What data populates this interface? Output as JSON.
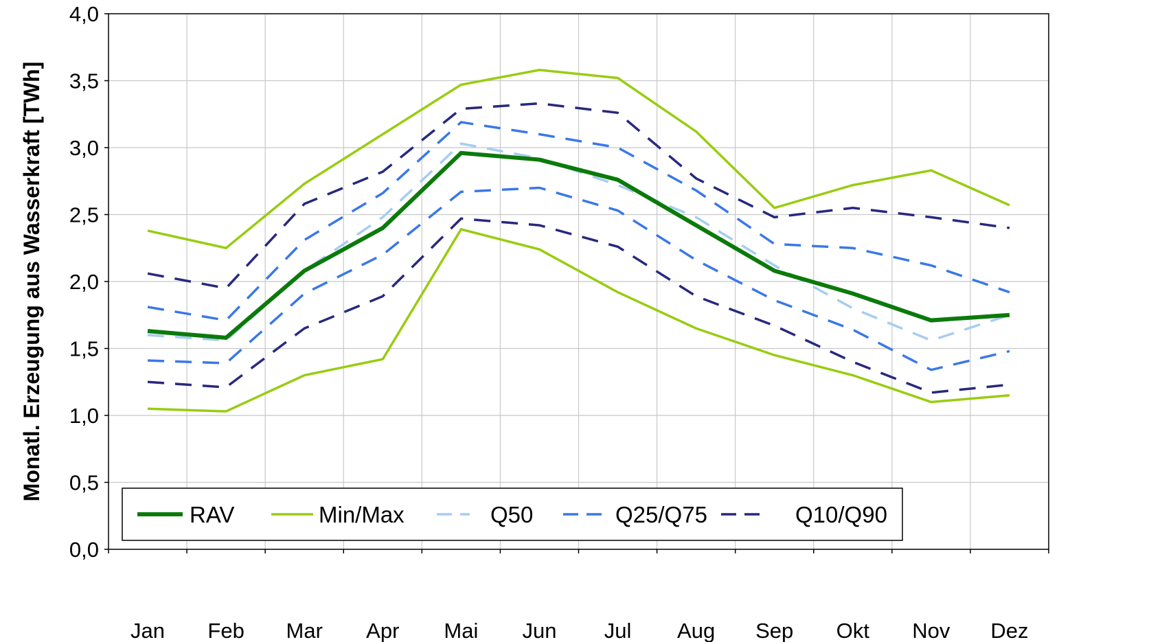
{
  "chart_data": {
    "type": "line",
    "ylabel": "Monatl. Erzeugung aus Wasserkraft [TWh]",
    "xlabel": "",
    "categories": [
      "Jan",
      "Feb",
      "Mar",
      "Apr",
      "Mai",
      "Jun",
      "Jul",
      "Aug",
      "Sep",
      "Okt",
      "Nov",
      "Dez"
    ],
    "ylim": [
      0,
      4
    ],
    "yticks": [
      0,
      0.5,
      1,
      1.5,
      2,
      2.5,
      3,
      3.5,
      4
    ],
    "ytick_labels": [
      "0,0",
      "0,5",
      "1,0",
      "1,5",
      "2,0",
      "2,5",
      "3,0",
      "3,5",
      "4,0"
    ],
    "grid": true,
    "legend_position": "bottom-left",
    "legend": [
      "RAV",
      "Min/Max",
      "Q50",
      "Q25/Q75",
      "Q10/Q90"
    ],
    "colors": {
      "RAV": "#0b7a0b",
      "Min/Max": "#99cc11",
      "Q50": "#a6cdf2",
      "Q25/Q75": "#3a78e8",
      "Q10/Q90": "#28287e"
    },
    "series": [
      {
        "name": "RAV",
        "values": [
          1.63,
          1.58,
          2.08,
          2.4,
          2.96,
          2.91,
          2.76,
          2.42,
          2.08,
          1.91,
          1.71,
          1.75
        ]
      },
      {
        "name": "Min/Max",
        "values": [
          2.38,
          2.25,
          2.73,
          3.1,
          3.47,
          3.58,
          3.52,
          3.12,
          2.55,
          2.72,
          2.83,
          2.57
        ]
      },
      {
        "name": "Min/Max",
        "values": [
          1.05,
          1.03,
          1.3,
          1.42,
          2.39,
          2.24,
          1.92,
          1.65,
          1.45,
          1.3,
          1.1,
          1.15
        ]
      },
      {
        "name": "Q50",
        "values": [
          1.6,
          1.56,
          2.08,
          2.48,
          3.03,
          2.92,
          2.72,
          2.48,
          2.12,
          1.8,
          1.56,
          1.75
        ]
      },
      {
        "name": "Q25/Q75",
        "values": [
          1.81,
          1.71,
          2.31,
          2.66,
          3.19,
          3.1,
          3.0,
          2.68,
          2.28,
          2.25,
          2.12,
          1.92
        ]
      },
      {
        "name": "Q25/Q75",
        "values": [
          1.41,
          1.39,
          1.91,
          2.2,
          2.67,
          2.7,
          2.53,
          2.16,
          1.86,
          1.64,
          1.34,
          1.48
        ]
      },
      {
        "name": "Q10/Q90",
        "values": [
          2.06,
          1.95,
          2.58,
          2.82,
          3.29,
          3.33,
          3.26,
          2.77,
          2.48,
          2.55,
          2.48,
          2.4
        ]
      },
      {
        "name": "Q10/Q90",
        "values": [
          1.25,
          1.21,
          1.65,
          1.89,
          2.47,
          2.42,
          2.26,
          1.89,
          1.67,
          1.4,
          1.17,
          1.23
        ]
      }
    ]
  }
}
